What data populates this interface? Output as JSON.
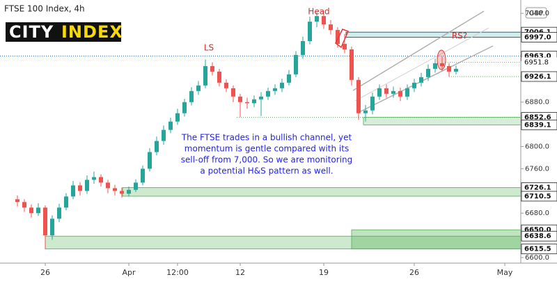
{
  "chart_data": {
    "type": "candlestick",
    "title": "FTSE 100 Index, 4h",
    "currency": "GBP",
    "logo": {
      "part1": "CITY",
      "part2": "INDEX"
    },
    "annotations": {
      "ls": "LS",
      "head": "Head",
      "rs": "RS?"
    },
    "note": [
      "The FTSE trades in a bullish channel, yet",
      "momentum is gentle compared with its",
      "sell-off from 7,000. So we are monitoring",
      "a potential H&S pattern as well."
    ],
    "up_color": "#26a69a",
    "down_color": "#ef5350",
    "categories": [
      null,
      null,
      null,
      null,
      "26",
      null,
      null,
      null,
      null,
      null,
      null,
      null,
      null,
      null,
      null,
      null,
      "Apr",
      null,
      null,
      null,
      null,
      null,
      null,
      "12:00",
      null,
      null,
      null,
      null,
      null,
      null,
      null,
      null,
      "12",
      null,
      null,
      null,
      null,
      null,
      null,
      null,
      null,
      null,
      null,
      null,
      "19",
      null,
      null,
      null,
      null,
      null,
      null,
      null,
      null,
      null,
      null,
      null,
      null,
      "26",
      null,
      null,
      null,
      null,
      null,
      null,
      null,
      null,
      null,
      null,
      null,
      null,
      "May"
    ],
    "open": [
      6705,
      6700,
      6690,
      6680,
      6690,
      6640,
      6670,
      6690,
      6710,
      6730,
      6720,
      6740,
      6745,
      6735,
      6725,
      6720,
      6715,
      6722,
      6735,
      6760,
      6790,
      6810,
      6830,
      6845,
      6860,
      6880,
      6900,
      6910,
      6945,
      6935,
      6915,
      6905,
      6890,
      6880,
      6878,
      6885,
      6890,
      6900,
      6905,
      6915,
      6930,
      6965,
      6990,
      7025,
      7035,
      7020,
      7010,
      6985,
      6975,
      6920,
      6860,
      6865,
      6890,
      6905,
      6895,
      6900,
      6890,
      6905,
      6915,
      6925,
      6940,
      6950,
      6945,
      6935,
      null,
      null,
      null,
      null,
      null,
      null,
      null
    ],
    "high": [
      6712,
      6705,
      6696,
      6698,
      6694,
      6676,
      6697,
      6716,
      6738,
      6736,
      6748,
      6755,
      6750,
      6740,
      6731,
      6726,
      6728,
      6741,
      6766,
      6797,
      6818,
      6838,
      6852,
      6868,
      6886,
      6907,
      6918,
      6957,
      6952,
      6940,
      6921,
      6910,
      6895,
      6888,
      6892,
      6898,
      6906,
      6912,
      6922,
      6938,
      6972,
      6998,
      7034,
      7042,
      7040,
      7028,
      7015,
      7003,
      6980,
      6925,
      6875,
      6897,
      6912,
      6912,
      6908,
      6906,
      6912,
      6922,
      6933,
      6948,
      6958,
      6962,
      6950,
      6946,
      null,
      null,
      null,
      null,
      null,
      null,
      null
    ],
    "low": [
      6692,
      6682,
      6672,
      6675,
      6615,
      6632,
      6664,
      6685,
      6705,
      6712,
      6715,
      6733,
      6728,
      6716,
      6712,
      6708,
      6710,
      6718,
      6730,
      6755,
      6784,
      6803,
      6824,
      6839,
      6854,
      6874,
      6893,
      6905,
      6928,
      6908,
      6898,
      6880,
      6853,
      6868,
      6871,
      6855,
      6884,
      6893,
      6898,
      6910,
      6925,
      6958,
      6984,
      7015,
      7012,
      7002,
      6978,
      6968,
      6910,
      6848,
      6845,
      6858,
      6884,
      6888,
      6888,
      6882,
      6884,
      6898,
      6908,
      6918,
      6933,
      6936,
      6926,
      6930,
      null,
      null,
      null,
      null,
      null,
      null,
      null
    ],
    "close": [
      6700,
      6690,
      6680,
      6690,
      6640,
      6670,
      6690,
      6710,
      6730,
      6720,
      6740,
      6745,
      6735,
      6725,
      6720,
      6715,
      6722,
      6735,
      6760,
      6790,
      6810,
      6830,
      6845,
      6860,
      6880,
      6900,
      6910,
      6945,
      6935,
      6915,
      6905,
      6890,
      6880,
      6878,
      6885,
      6890,
      6900,
      6905,
      6915,
      6930,
      6965,
      6990,
      7025,
      7035,
      7020,
      7010,
      6985,
      6975,
      6920,
      6860,
      6865,
      6890,
      6905,
      6895,
      6900,
      6890,
      6905,
      6915,
      6925,
      6940,
      6950,
      6945,
      6935,
      6940,
      null,
      null,
      null,
      null,
      null,
      null,
      null
    ],
    "ylim": [
      6590,
      7064
    ],
    "yticks": [
      {
        "value": 6600,
        "label": "6600.0"
      },
      {
        "value": 6680,
        "label": "6680.0"
      },
      {
        "value": 6760,
        "label": "6760.0"
      },
      {
        "value": 6800,
        "label": "6800.0"
      },
      {
        "value": 6880,
        "label": "6880.0"
      },
      {
        "value": 7040,
        "label": "7040.0"
      }
    ],
    "levels": [
      7006.1,
      {
        "value": 6997,
        "label": "6997.0"
      },
      {
        "value": 6963,
        "label": "6963.0"
      },
      6951.8,
      6926.1,
      6852.6,
      6839.1,
      6726.1,
      6710.5,
      {
        "value": 6650,
        "label": "6650.0"
      },
      6638.6,
      6615.5
    ]
  }
}
